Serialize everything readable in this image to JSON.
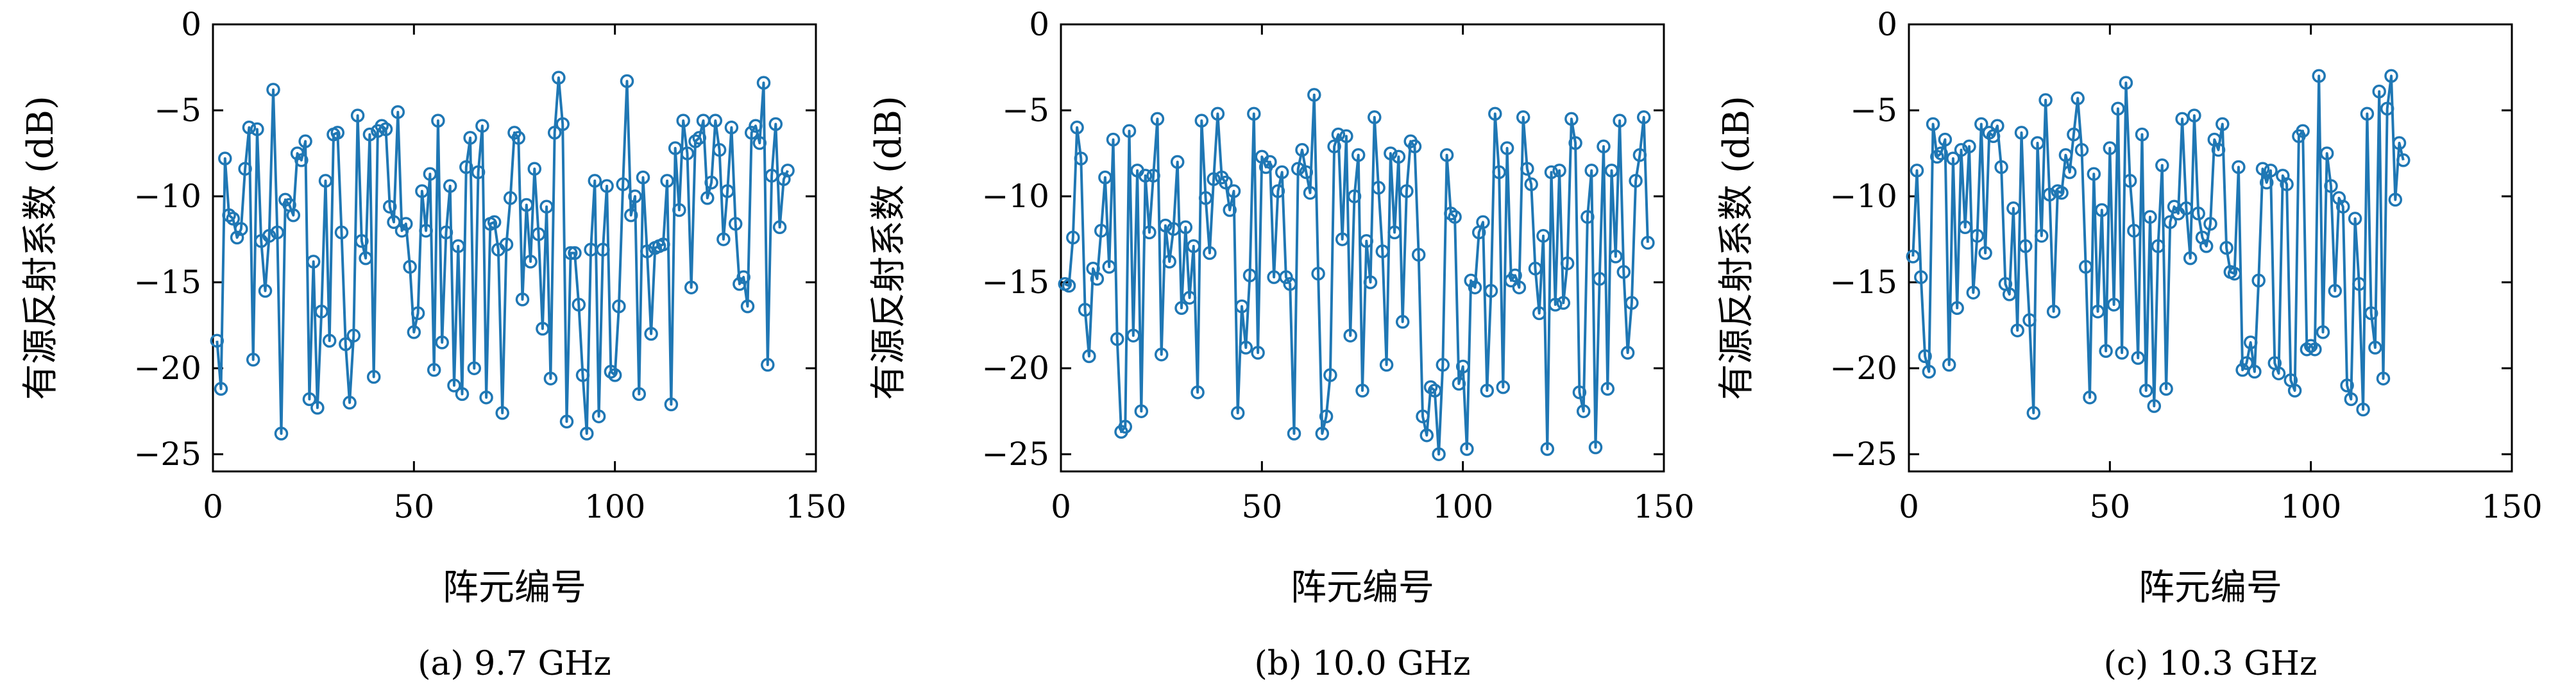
{
  "figure": {
    "background": "#ffffff",
    "line_color": "#1f77b4"
  },
  "chart_data": [
    {
      "type": "line",
      "caption": "(a) 9.7 GHz",
      "xlabel": "阵元编号",
      "ylabel": "有源反射系数 (dB)",
      "xlim": [
        0,
        150
      ],
      "ylim": [
        -26,
        0
      ],
      "xticks": [
        0,
        50,
        100,
        150
      ],
      "yticks": [
        0,
        -5,
        -10,
        -15,
        -20,
        -25
      ],
      "series": [
        {
          "marker": "circle-open",
          "color": "#1f77b4",
          "y": [
            -18.4,
            -21.2,
            -7.8,
            -11.1,
            -11.3,
            -12.4,
            -11.9,
            -8.4,
            -6,
            -19.5,
            -6.1,
            -12.6,
            -15.5,
            -12.3,
            -3.8,
            -12.1,
            -23.8,
            -10.2,
            -10.5,
            -11.1,
            -7.5,
            -7.9,
            -6.8,
            -21.8,
            -13.8,
            -22.3,
            -16.7,
            -9.1,
            -18.4,
            -6.4,
            -6.3,
            -12.1,
            -18.6,
            -22,
            -18.1,
            -5.3,
            -12.6,
            -13.6,
            -6.4,
            -20.5,
            -6.2,
            -5.9,
            -6.1,
            -10.6,
            -11.5,
            -5.1,
            -12,
            -11.6,
            -14.1,
            -17.9,
            -16.8,
            -9.7,
            -12,
            -8.7,
            -20.1,
            -5.6,
            -18.5,
            -12.1,
            -9.4,
            -21,
            -12.9,
            -21.5,
            -8.3,
            -6.6,
            -20,
            -8.6,
            -5.9,
            -21.7,
            -11.6,
            -11.5,
            -13.1,
            -22.6,
            -12.8,
            -10.1,
            -6.3,
            -6.6,
            -16,
            -10.5,
            -13.8,
            -8.4,
            -12.2,
            -17.7,
            -10.6,
            -20.6,
            -6.3,
            -3.1,
            -5.8,
            -23.1,
            -13.3,
            -13.3,
            -16.3,
            -20.4,
            -23.8,
            -13.1,
            -9.1,
            -22.8,
            -13.1,
            -9.4,
            -20.2,
            -20.4,
            -16.4,
            -9.3,
            -3.3,
            -11.1,
            -10,
            -21.5,
            -8.9,
            -13.2,
            -18,
            -13,
            -12.9,
            -12.8,
            -9.1,
            -22.1,
            -7.2,
            -10.8,
            -5.6,
            -7.5,
            -15.3,
            -6.8,
            -6.6,
            -5.6,
            -10.1,
            -9.2,
            -5.6,
            -7.3,
            -12.5,
            -9.7,
            -6,
            -11.6,
            -15.1,
            -14.7,
            -16.4,
            -6.3,
            -5.9,
            -6.9,
            -3.4,
            -19.8,
            -8.8,
            -5.8,
            -11.8,
            -9,
            -8.5
          ]
        }
      ]
    },
    {
      "type": "line",
      "caption": "(b) 10.0 GHz",
      "xlabel": "阵元编号",
      "ylabel": "有源反射系数 (dB)",
      "xlim": [
        0,
        150
      ],
      "ylim": [
        -26,
        0
      ],
      "xticks": [
        0,
        50,
        100,
        150
      ],
      "yticks": [
        0,
        -5,
        -10,
        -15,
        -20,
        -25
      ],
      "series": [
        {
          "marker": "circle-open",
          "color": "#1f77b4",
          "y": [
            -15.1,
            -15.2,
            -12.4,
            -6,
            -7.8,
            -16.6,
            -19.3,
            -14.2,
            -14.8,
            -12,
            -8.9,
            -14.1,
            -6.7,
            -18.3,
            -23.7,
            -23.4,
            -6.2,
            -18.1,
            -8.5,
            -22.5,
            -8.8,
            -12.1,
            -8.8,
            -5.5,
            -19.2,
            -11.7,
            -13.8,
            -11.9,
            -8,
            -16.5,
            -11.8,
            -15.9,
            -12.9,
            -21.4,
            -5.6,
            -10.1,
            -13.3,
            -9,
            -5.2,
            -8.9,
            -9.2,
            -10.8,
            -9.7,
            -22.6,
            -16.4,
            -18.8,
            -14.6,
            -5.2,
            -19.1,
            -7.7,
            -8.3,
            -8,
            -14.7,
            -9.7,
            -8.6,
            -14.7,
            -15.1,
            -23.8,
            -8.4,
            -7.3,
            -8.6,
            -9.8,
            -4.1,
            -14.5,
            -23.8,
            -22.8,
            -20.4,
            -7.1,
            -6.4,
            -12.5,
            -6.5,
            -18.1,
            -10,
            -7.6,
            -21.3,
            -12.6,
            -15,
            -5.4,
            -9.5,
            -13.2,
            -19.8,
            -7.5,
            -12.1,
            -7.7,
            -17.3,
            -9.7,
            -6.8,
            -7.1,
            -13.4,
            -22.8,
            -23.9,
            -21.1,
            -21.3,
            -25,
            -19.8,
            -7.6,
            -11,
            -11.2,
            -20.9,
            -19.9,
            -24.7,
            -14.9,
            -15.3,
            -12.1,
            -11.5,
            -21.3,
            -15.5,
            -5.2,
            -8.6,
            -21.1,
            -7.2,
            -14.9,
            -14.6,
            -15.3,
            -5.4,
            -8.4,
            -9.3,
            -14.2,
            -16.8,
            -12.3,
            -24.7,
            -8.6,
            -16.3,
            -8.5,
            -16.2,
            -13.9,
            -5.5,
            -6.9,
            -21.4,
            -22.5,
            -11.2,
            -8.5,
            -24.6,
            -14.8,
            -7.1,
            -21.2,
            -8.5,
            -13.5,
            -5.6,
            -14.4,
            -19.1,
            -16.2,
            -9.1,
            -7.6,
            -5.4,
            -12.7
          ]
        }
      ]
    },
    {
      "type": "line",
      "caption": "(c) 10.3 GHz",
      "xlabel": "阵元编号",
      "ylabel": "有源反射系数 (dB)",
      "xlim": [
        0,
        150
      ],
      "ylim": [
        -26,
        0
      ],
      "xticks": [
        0,
        50,
        100,
        150
      ],
      "yticks": [
        0,
        -5,
        -10,
        -15,
        -20,
        -25
      ],
      "series": [
        {
          "marker": "circle-open",
          "color": "#1f77b4",
          "y": [
            -13.5,
            -8.5,
            -14.7,
            -19.3,
            -20.2,
            -5.8,
            -7.7,
            -7.5,
            -6.7,
            -19.8,
            -7.8,
            -16.5,
            -7.3,
            -11.8,
            -7.1,
            -15.6,
            -12.3,
            -5.8,
            -13.3,
            -6.3,
            -6.5,
            -5.9,
            -8.3,
            -15.1,
            -15.7,
            -10.7,
            -17.8,
            -6.3,
            -12.9,
            -17.2,
            -22.6,
            -6.9,
            -12.3,
            -4.4,
            -9.9,
            -16.7,
            -9.7,
            -9.8,
            -7.6,
            -8.6,
            -6.4,
            -4.3,
            -7.3,
            -14.1,
            -21.7,
            -8.7,
            -16.7,
            -10.8,
            -19,
            -7.2,
            -16.3,
            -4.9,
            -19.1,
            -3.4,
            -9.1,
            -12,
            -19.4,
            -6.4,
            -21.3,
            -11.2,
            -22.2,
            -12.9,
            -8.2,
            -21.2,
            -11.5,
            -10.6,
            -11,
            -5.5,
            -10.7,
            -13.6,
            -5.3,
            -11,
            -12.4,
            -12.9,
            -11.6,
            -6.7,
            -7.3,
            -5.8,
            -13,
            -14.4,
            -14.5,
            -8.3,
            -20.1,
            -19.7,
            -18.5,
            -20.2,
            -14.9,
            -8.4,
            -9.2,
            -8.5,
            -19.7,
            -20.3,
            -8.8,
            -9.3,
            -20.7,
            -21.3,
            -6.5,
            -6.2,
            -18.9,
            -18.7,
            -18.9,
            -3,
            -17.9,
            -7.5,
            -9.4,
            -15.5,
            -10.1,
            -10.6,
            -21,
            -21.8,
            -11.3,
            -15.1,
            -22.4,
            -5.2,
            -16.8,
            -18.8,
            -3.9,
            -20.6,
            -4.9,
            -3,
            -10.2,
            -6.9,
            -7.9
          ]
        }
      ]
    }
  ]
}
